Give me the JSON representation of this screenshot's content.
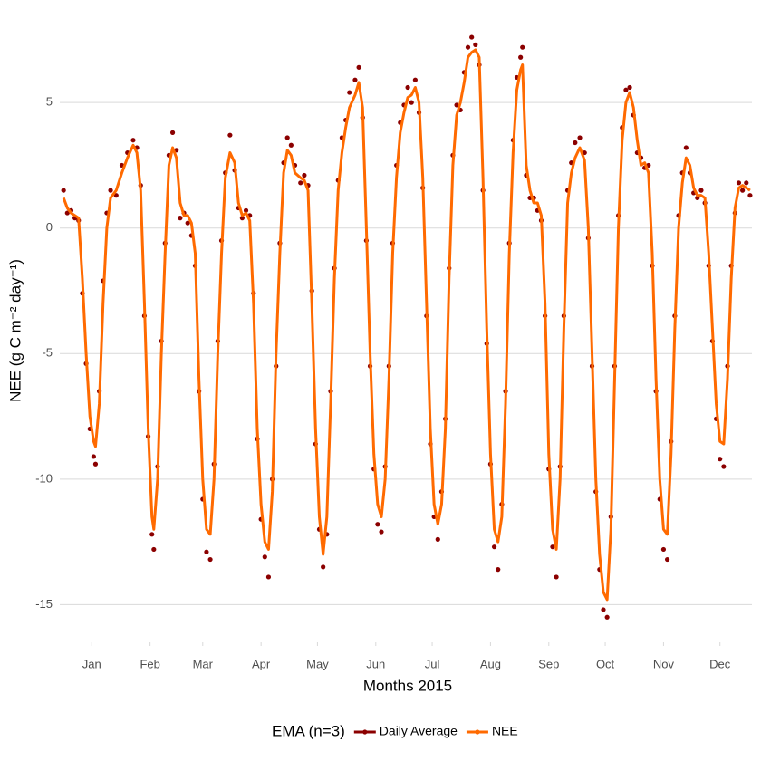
{
  "chart_data": {
    "type": "line",
    "x_label": "Months 2015",
    "y_label": "NEE (g C m⁻² day⁻¹)",
    "legend_title": "EMA (n=3)",
    "legend_position": "bottom",
    "grid": true,
    "xlim": [
      -2,
      366
    ],
    "ylim": [
      -16.5,
      8
    ],
    "xticks": [
      {
        "value": 15,
        "label": "Jan"
      },
      {
        "value": 46,
        "label": "Feb"
      },
      {
        "value": 74,
        "label": "Mar"
      },
      {
        "value": 105,
        "label": "Apr"
      },
      {
        "value": 135,
        "label": "May"
      },
      {
        "value": 166,
        "label": "Jun"
      },
      {
        "value": 196,
        "label": "Jul"
      },
      {
        "value": 227,
        "label": "Aug"
      },
      {
        "value": 258,
        "label": "Sep"
      },
      {
        "value": 288,
        "label": "Oct"
      },
      {
        "value": 319,
        "label": "Nov"
      },
      {
        "value": 349,
        "label": "Dec"
      }
    ],
    "yticks": [
      -15,
      -10,
      -5,
      0,
      5
    ],
    "x": [
      0,
      2,
      4,
      6,
      8,
      10,
      12,
      14,
      16,
      17,
      19,
      21,
      23,
      25,
      28,
      31,
      34,
      37,
      39,
      41,
      43,
      45,
      47,
      48,
      50,
      52,
      54,
      56,
      58,
      60,
      62,
      64,
      66,
      68,
      70,
      72,
      74,
      76,
      78,
      80,
      82,
      84,
      86,
      88.5,
      91,
      93,
      95,
      97,
      99,
      101,
      103,
      105,
      107,
      109,
      111,
      113,
      115,
      117,
      119,
      121,
      123,
      126,
      128,
      130,
      132,
      134,
      136,
      138,
      140,
      142,
      144,
      146,
      148,
      150,
      152,
      155,
      157,
      159,
      161,
      163,
      165,
      167,
      169,
      171,
      173,
      175,
      177,
      179,
      181,
      183,
      185,
      187,
      189,
      191,
      193,
      195,
      197,
      199,
      201,
      203,
      205,
      207,
      209,
      211,
      213,
      215,
      217,
      219,
      221,
      223,
      225,
      227,
      229,
      231,
      233,
      235,
      237,
      239,
      241,
      243,
      244,
      246,
      248,
      250,
      252,
      254,
      256,
      258,
      260,
      262,
      264,
      266,
      268,
      270,
      272,
      274.5,
      277,
      279,
      281,
      283,
      285,
      287,
      289,
      291,
      293,
      295,
      297,
      299,
      301,
      303,
      305,
      307,
      309,
      311,
      313,
      315,
      317,
      319,
      321,
      323,
      325,
      327,
      329,
      331,
      333,
      335,
      337,
      339,
      341,
      343,
      345,
      347,
      349,
      351,
      353,
      355,
      357,
      359,
      361,
      363,
      365
    ],
    "series": [
      {
        "name": "Daily Average",
        "style": "points",
        "color": "#8b0000",
        "values": [
          1.5,
          0.6,
          0.7,
          0.4,
          0.3,
          -2.6,
          -5.4,
          -8.0,
          -9.1,
          -9.4,
          -6.5,
          -2.1,
          0.6,
          1.5,
          1.3,
          2.5,
          3.0,
          3.5,
          3.2,
          1.7,
          -3.5,
          -8.3,
          -12.2,
          -12.8,
          -9.5,
          -4.5,
          -0.6,
          2.9,
          3.8,
          3.1,
          0.4,
          0.6,
          0.2,
          -0.3,
          -1.5,
          -6.5,
          -10.8,
          -12.9,
          -13.2,
          -9.4,
          -4.5,
          -0.5,
          2.2,
          3.7,
          2.3,
          0.8,
          0.4,
          0.7,
          0.5,
          -2.6,
          -8.4,
          -11.6,
          -13.1,
          -13.9,
          -10.0,
          -5.5,
          -0.6,
          2.6,
          3.6,
          3.3,
          2.5,
          1.8,
          2.1,
          1.7,
          -2.5,
          -8.6,
          -12.0,
          -13.5,
          -12.2,
          -6.5,
          -1.6,
          1.9,
          3.6,
          4.3,
          5.4,
          5.9,
          6.4,
          4.4,
          -0.5,
          -5.5,
          -9.6,
          -11.8,
          -12.1,
          -9.5,
          -5.5,
          -0.6,
          2.5,
          4.2,
          4.9,
          5.6,
          5.0,
          5.9,
          4.6,
          1.6,
          -3.5,
          -8.6,
          -11.5,
          -12.4,
          -10.5,
          -7.6,
          -1.6,
          2.9,
          4.9,
          4.7,
          6.2,
          7.2,
          7.6,
          7.3,
          6.5,
          1.5,
          -4.6,
          -9.4,
          -12.7,
          -13.6,
          -11.0,
          -6.5,
          -0.6,
          3.5,
          6.0,
          6.8,
          7.2,
          2.1,
          1.2,
          1.2,
          0.7,
          0.3,
          -3.5,
          -9.6,
          -12.7,
          -13.9,
          -9.5,
          -3.5,
          1.5,
          2.6,
          3.4,
          3.6,
          3.0,
          -0.4,
          -5.5,
          -10.5,
          -13.6,
          -15.2,
          -15.5,
          -11.5,
          -5.5,
          0.5,
          4.0,
          5.5,
          5.6,
          4.5,
          3.0,
          2.8,
          2.4,
          2.5,
          -1.5,
          -6.5,
          -10.8,
          -12.8,
          -13.2,
          -8.5,
          -3.5,
          0.5,
          2.2,
          3.2,
          2.2,
          1.4,
          1.2,
          1.5,
          1.0,
          -1.5,
          -4.5,
          -7.6,
          -9.2,
          -9.5,
          -5.5,
          -1.5,
          0.6,
          1.8,
          1.5,
          1.8,
          1.3
        ]
      },
      {
        "name": "NEE",
        "style": "line",
        "color": "#ff6a00",
        "values": [
          1.2,
          0.8,
          0.6,
          0.5,
          0.4,
          -2,
          -5,
          -7.5,
          -8.5,
          -8.7,
          -7,
          -3,
          0,
          1.2,
          1.5,
          2.2,
          2.8,
          3.3,
          3.0,
          1.5,
          -3,
          -8,
          -11.5,
          -12,
          -10,
          -5,
          -1,
          2.5,
          3.2,
          2.8,
          1,
          0.5,
          0.5,
          0.2,
          -1,
          -6,
          -10,
          -12,
          -12.2,
          -10,
          -5,
          -1,
          2,
          3.0,
          2.6,
          1,
          0.5,
          0.6,
          0.3,
          -3,
          -8,
          -11,
          -12.5,
          -12.8,
          -10.5,
          -5,
          -1,
          2.2,
          3.1,
          2.9,
          2.2,
          2.0,
          1.9,
          1.5,
          -3,
          -8,
          -11.5,
          -13,
          -11.5,
          -7,
          -2,
          1.5,
          3.0,
          4.0,
          4.8,
          5.3,
          5.8,
          4.8,
          0,
          -5,
          -9,
          -11,
          -11.5,
          -10,
          -6,
          -1,
          2.0,
          3.8,
          4.6,
          5.2,
          5.3,
          5.6,
          5.0,
          2,
          -3,
          -8,
          -11,
          -11.8,
          -11,
          -8,
          -2,
          2.5,
          4.5,
          5.0,
          5.8,
          6.8,
          7.0,
          7.1,
          6.8,
          2,
          -4,
          -9,
          -12,
          -12.5,
          -11.5,
          -7,
          -1,
          3,
          5.5,
          6.3,
          6.5,
          2.5,
          1.5,
          1.0,
          1.0,
          0.5,
          -3,
          -9,
          -12,
          -12.8,
          -10,
          -4,
          1.0,
          2.2,
          2.8,
          3.2,
          2.7,
          0,
          -5,
          -10,
          -13,
          -14.5,
          -14.8,
          -12,
          -6,
          0,
          3.5,
          5.0,
          5.4,
          4.8,
          3.5,
          2.5,
          2.6,
          2.2,
          -1,
          -6,
          -10,
          -12,
          -12.2,
          -9,
          -4,
          0,
          1.8,
          2.8,
          2.5,
          1.6,
          1.3,
          1.3,
          1.2,
          -1,
          -4,
          -7,
          -8.5,
          -8.6,
          -6,
          -2,
          0.8,
          1.6,
          1.7,
          1.6,
          1.5
        ]
      }
    ]
  }
}
